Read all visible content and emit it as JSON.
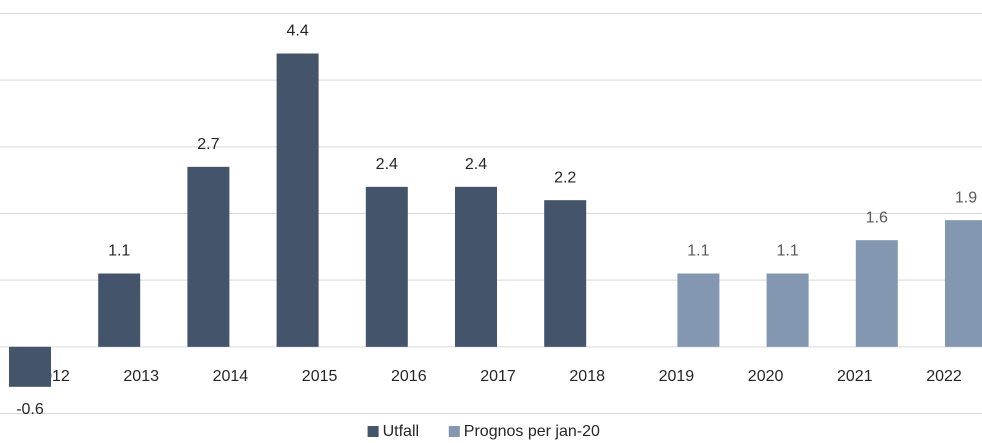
{
  "chart_data": {
    "type": "bar",
    "categories": [
      "2012",
      "2013",
      "2014",
      "2015",
      "2016",
      "2017",
      "2018",
      "2019",
      "2020",
      "2021",
      "2022"
    ],
    "series": [
      {
        "name": "Utfall",
        "color": "#44546a",
        "values": [
          -0.6,
          1.1,
          2.7,
          4.4,
          2.4,
          2.4,
          2.2,
          null,
          null,
          null,
          null
        ]
      },
      {
        "name": "Prognos per jan-20",
        "color": "#8497b0",
        "values": [
          null,
          null,
          null,
          null,
          null,
          null,
          null,
          1.1,
          1.1,
          1.6,
          1.9
        ]
      }
    ],
    "ylim": [
      -1,
      5
    ],
    "yticks": [
      -1,
      0,
      1,
      2,
      3,
      4,
      5
    ],
    "grid": true,
    "legend": "bottom"
  }
}
